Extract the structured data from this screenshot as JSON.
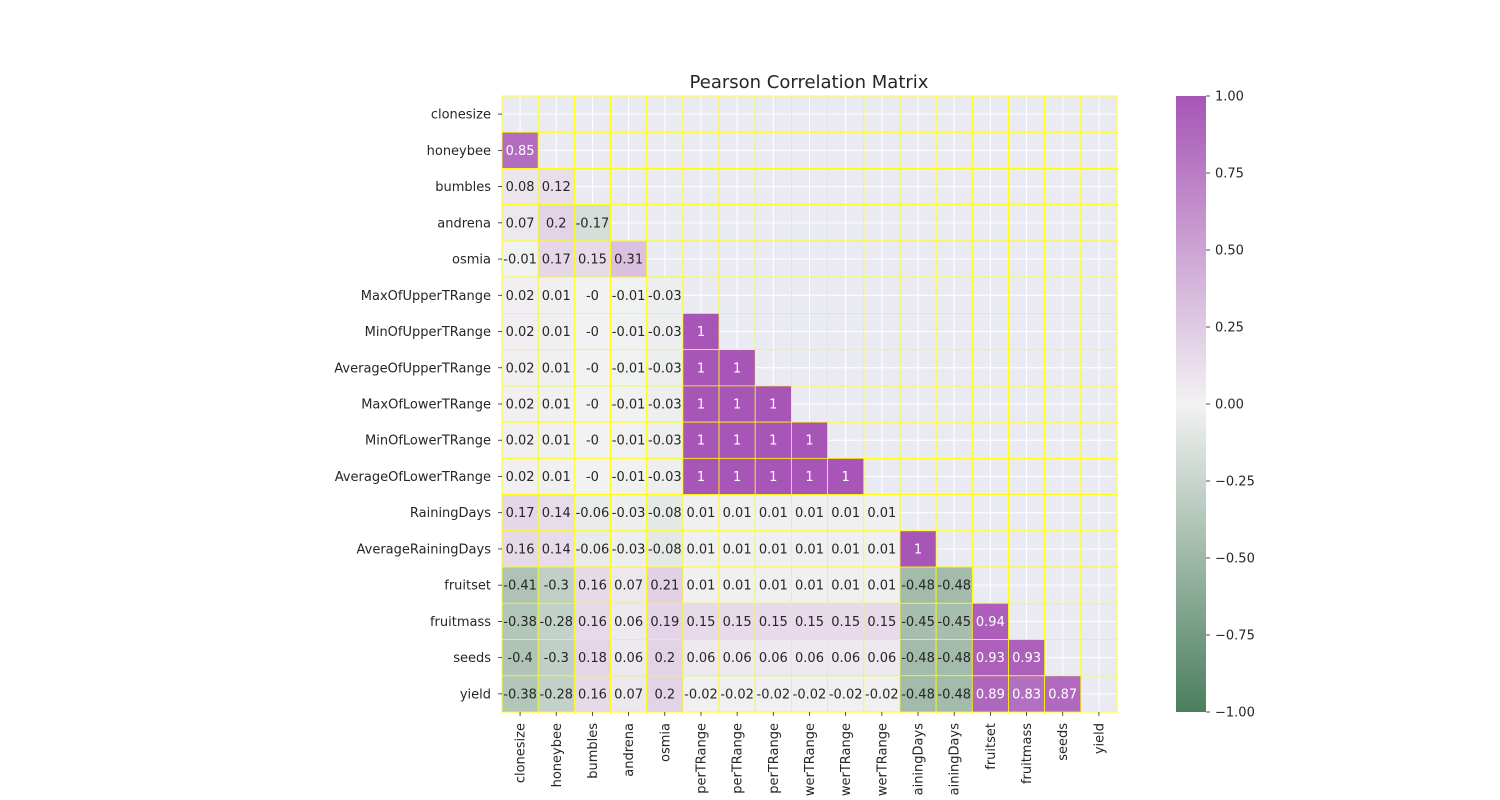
{
  "chart_data": {
    "type": "heatmap",
    "title": "Pearson Correlation Matrix",
    "variables": [
      "clonesize",
      "honeybee",
      "bumbles",
      "andrena",
      "osmia",
      "MaxOfUpperTRange",
      "MinOfUpperTRange",
      "AverageOfUpperTRange",
      "MaxOfLowerTRange",
      "MinOfLowerTRange",
      "AverageOfLowerTRange",
      "RainingDays",
      "AverageRainingDays",
      "fruitset",
      "fruitmass",
      "seeds",
      "yield"
    ],
    "x_tick_labels": [
      "clonesize",
      "honeybee",
      "bumbles",
      "andrena",
      "osmia",
      "perTRange",
      "perTRange",
      "perTRange",
      "werTRange",
      "werTRange",
      "werTRange",
      "ainingDays",
      "ainingDays",
      "fruitset",
      "fruitmass",
      "seeds",
      "yield"
    ],
    "mask": "upper triangle including diagonal",
    "lower_triangle_values": [
      [],
      [
        "0.85"
      ],
      [
        "0.08",
        "0.12"
      ],
      [
        "0.07",
        "0.2",
        "-0.17"
      ],
      [
        "-0.01",
        "0.17",
        "0.15",
        "0.31"
      ],
      [
        "0.02",
        "0.01",
        "-0",
        "-0.01",
        "-0.03"
      ],
      [
        "0.02",
        "0.01",
        "-0",
        "-0.01",
        "-0.03",
        "1"
      ],
      [
        "0.02",
        "0.01",
        "-0",
        "-0.01",
        "-0.03",
        "1",
        "1"
      ],
      [
        "0.02",
        "0.01",
        "-0",
        "-0.01",
        "-0.03",
        "1",
        "1",
        "1"
      ],
      [
        "0.02",
        "0.01",
        "-0",
        "-0.01",
        "-0.03",
        "1",
        "1",
        "1",
        "1"
      ],
      [
        "0.02",
        "0.01",
        "-0",
        "-0.01",
        "-0.03",
        "1",
        "1",
        "1",
        "1",
        "1"
      ],
      [
        "0.17",
        "0.14",
        "-0.06",
        "-0.03",
        "-0.08",
        "0.01",
        "0.01",
        "0.01",
        "0.01",
        "0.01",
        "0.01"
      ],
      [
        "0.16",
        "0.14",
        "-0.06",
        "-0.03",
        "-0.08",
        "0.01",
        "0.01",
        "0.01",
        "0.01",
        "0.01",
        "0.01",
        "1"
      ],
      [
        "-0.41",
        "-0.3",
        "0.16",
        "0.07",
        "0.21",
        "0.01",
        "0.01",
        "0.01",
        "0.01",
        "0.01",
        "0.01",
        "-0.48",
        "-0.48"
      ],
      [
        "-0.38",
        "-0.28",
        "0.16",
        "0.06",
        "0.19",
        "0.15",
        "0.15",
        "0.15",
        "0.15",
        "0.15",
        "0.15",
        "-0.45",
        "-0.45",
        "0.94"
      ],
      [
        "-0.4",
        "-0.3",
        "0.18",
        "0.06",
        "0.2",
        "0.06",
        "0.06",
        "0.06",
        "0.06",
        "0.06",
        "0.06",
        "-0.48",
        "-0.48",
        "0.93",
        "0.93"
      ],
      [
        "-0.38",
        "-0.28",
        "0.16",
        "0.07",
        "0.2",
        "-0.02",
        "-0.02",
        "-0.02",
        "-0.02",
        "-0.02",
        "-0.02",
        "-0.48",
        "-0.48",
        "0.89",
        "0.83",
        "0.87"
      ]
    ],
    "colorbar": {
      "range": [
        -1.0,
        1.0
      ],
      "ticks": [
        "1.00",
        "0.75",
        "0.50",
        "0.25",
        "0.00",
        "−0.25",
        "−0.50",
        "−0.75",
        "−1.00"
      ],
      "tick_values": [
        1.0,
        0.75,
        0.5,
        0.25,
        0.0,
        -0.25,
        -0.5,
        -0.75,
        -1.0
      ]
    },
    "colors": {
      "negative": "#4b7f5e",
      "center": "#f2f2f2",
      "positive": "#a755b6",
      "cell_border": "#ffff00",
      "masked_background": "#eaeaf2",
      "grid": "#ffffff"
    }
  }
}
